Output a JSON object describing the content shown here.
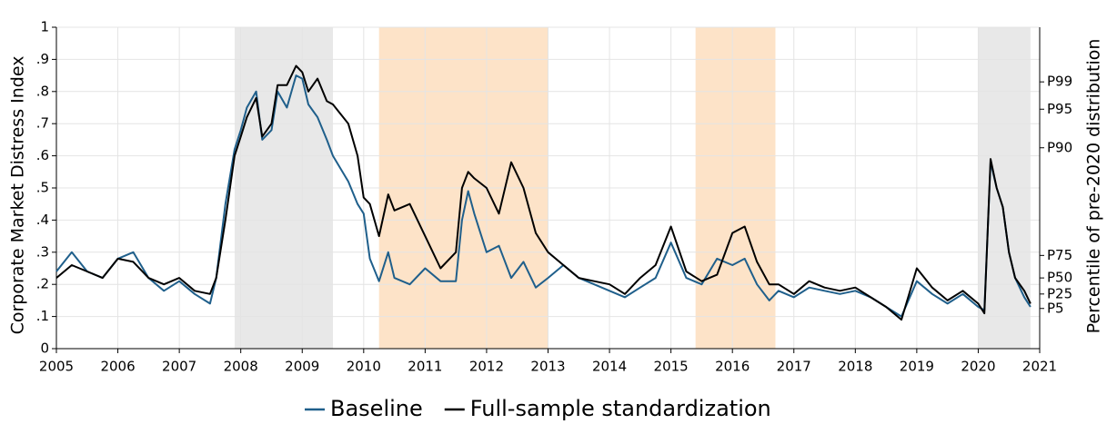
{
  "chart_data": {
    "type": "line",
    "y_label": "Corporate Market Distress Index",
    "y2_label": "Percentile of pre-2020 distribution",
    "x": [
      2005,
      2005.25,
      2005.5,
      2005.75,
      2006,
      2006.25,
      2006.5,
      2006.75,
      2007,
      2007.25,
      2007.5,
      2007.6,
      2007.75,
      2007.9,
      2008,
      2008.1,
      2008.25,
      2008.35,
      2008.5,
      2008.6,
      2008.75,
      2008.9,
      2009,
      2009.1,
      2009.25,
      2009.4,
      2009.5,
      2009.75,
      2009.9,
      2010,
      2010.1,
      2010.25,
      2010.4,
      2010.5,
      2010.75,
      2011,
      2011.25,
      2011.5,
      2011.6,
      2011.7,
      2011.8,
      2012,
      2012.2,
      2012.4,
      2012.6,
      2012.8,
      2013,
      2013.25,
      2013.5,
      2013.75,
      2014,
      2014.25,
      2014.5,
      2014.75,
      2015,
      2015.25,
      2015.5,
      2015.75,
      2016,
      2016.2,
      2016.4,
      2016.6,
      2016.75,
      2017,
      2017.25,
      2017.5,
      2017.75,
      2018,
      2018.25,
      2018.5,
      2018.75,
      2019,
      2019.25,
      2019.5,
      2019.75,
      2020,
      2020.1,
      2020.2,
      2020.3,
      2020.4,
      2020.5,
      2020.6,
      2020.75,
      2020.85
    ],
    "series": [
      {
        "name": "Baseline",
        "color": "#1f5f8b",
        "values": [
          0.24,
          0.3,
          0.24,
          0.22,
          0.28,
          0.3,
          0.22,
          0.18,
          0.21,
          0.17,
          0.14,
          0.22,
          0.45,
          0.62,
          0.68,
          0.75,
          0.8,
          0.65,
          0.68,
          0.8,
          0.75,
          0.85,
          0.84,
          0.76,
          0.72,
          0.65,
          0.6,
          0.52,
          0.45,
          0.42,
          0.28,
          0.21,
          0.3,
          0.22,
          0.2,
          0.25,
          0.21,
          0.21,
          0.4,
          0.49,
          0.42,
          0.3,
          0.32,
          0.22,
          0.27,
          0.19,
          0.22,
          0.26,
          0.22,
          0.2,
          0.18,
          0.16,
          0.19,
          0.22,
          0.33,
          0.22,
          0.2,
          0.28,
          0.26,
          0.28,
          0.2,
          0.15,
          0.18,
          0.16,
          0.19,
          0.18,
          0.17,
          0.18,
          0.16,
          0.13,
          0.1,
          0.21,
          0.17,
          0.14,
          0.17,
          0.13,
          0.12,
          0.58,
          0.5,
          0.44,
          0.3,
          0.22,
          0.16,
          0.13
        ]
      },
      {
        "name": "Full-sample standardization",
        "color": "#000000",
        "values": [
          0.22,
          0.26,
          0.24,
          0.22,
          0.28,
          0.27,
          0.22,
          0.2,
          0.22,
          0.18,
          0.17,
          0.22,
          0.4,
          0.6,
          0.66,
          0.72,
          0.78,
          0.66,
          0.7,
          0.82,
          0.82,
          0.88,
          0.86,
          0.8,
          0.84,
          0.77,
          0.76,
          0.7,
          0.6,
          0.47,
          0.45,
          0.35,
          0.48,
          0.43,
          0.45,
          0.35,
          0.25,
          0.3,
          0.5,
          0.55,
          0.53,
          0.5,
          0.42,
          0.58,
          0.5,
          0.36,
          0.3,
          0.26,
          0.22,
          0.21,
          0.2,
          0.17,
          0.22,
          0.26,
          0.38,
          0.24,
          0.21,
          0.23,
          0.36,
          0.38,
          0.27,
          0.2,
          0.2,
          0.17,
          0.21,
          0.19,
          0.18,
          0.19,
          0.16,
          0.13,
          0.09,
          0.25,
          0.19,
          0.15,
          0.18,
          0.14,
          0.11,
          0.59,
          0.5,
          0.44,
          0.3,
          0.22,
          0.18,
          0.14
        ]
      }
    ],
    "shaded_regions": [
      {
        "start": 2007.9,
        "end": 2009.5,
        "color": "#e8e8e8"
      },
      {
        "start": 2010.25,
        "end": 2013.0,
        "color": "#fde3c8"
      },
      {
        "start": 2015.4,
        "end": 2016.7,
        "color": "#fde3c8"
      },
      {
        "start": 2020.0,
        "end": 2020.85,
        "color": "#e8e8e8"
      }
    ],
    "xlim": [
      2005,
      2021
    ],
    "xticks": [
      2005,
      2006,
      2007,
      2008,
      2009,
      2010,
      2011,
      2012,
      2013,
      2014,
      2015,
      2016,
      2017,
      2018,
      2019,
      2020,
      2021
    ],
    "ylim": [
      0,
      1
    ],
    "yticks": [
      0,
      {
        "value": 0.1,
        "label": ".1"
      },
      {
        "value": 0.2,
        "label": ".2"
      },
      {
        "value": 0.3,
        "label": ".3"
      },
      {
        "value": 0.4,
        "label": ".4"
      },
      {
        "value": 0.5,
        "label": ".5"
      },
      {
        "value": 0.6,
        "label": ".6"
      },
      {
        "value": 0.7,
        "label": ".7"
      },
      {
        "value": 0.8,
        "label": ".8"
      },
      {
        "value": 0.9,
        "label": ".9"
      },
      1
    ],
    "y2lim": [
      0,
      1
    ],
    "y2ticks": [
      {
        "value": 0.125,
        "label": "P5"
      },
      {
        "value": 0.17,
        "label": "P25"
      },
      {
        "value": 0.22,
        "label": "P50"
      },
      {
        "value": 0.29,
        "label": "P75"
      },
      {
        "value": 0.625,
        "label": "P90"
      },
      {
        "value": 0.745,
        "label": "P95"
      },
      {
        "value": 0.83,
        "label": "P99"
      }
    ],
    "grid": true,
    "legend": "bottom"
  }
}
